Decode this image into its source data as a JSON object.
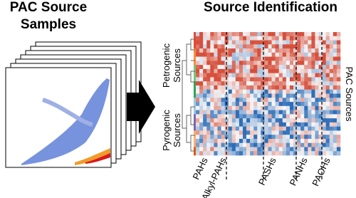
{
  "left_title": [
    "PAC Source",
    "Samples"
  ],
  "right_title": "Source Identification",
  "row_groups": [
    [
      "Petrogenic",
      "Sources"
    ],
    [
      "Pyrogenic",
      "Sources"
    ]
  ],
  "column_groups": [
    "PAHs",
    "Alkyl-PAHs",
    "PASHs",
    "PANHs",
    "PAOHs"
  ],
  "row_axis_label": "PAC Sources"
}
